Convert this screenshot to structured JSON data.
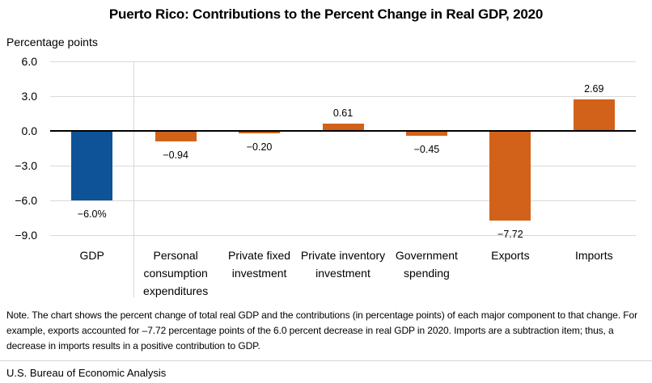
{
  "title": "Puerto Rico: Contributions to the Percent Change in Real GDP, 2020",
  "axis_caption": "Percentage points",
  "chart_data": {
    "type": "bar",
    "title": "Puerto Rico: Contributions to the Percent Change in Real GDP, 2020",
    "ylabel": "Percentage points",
    "categories": [
      "GDP",
      "Personal consumption expenditures",
      "Private fixed investment",
      "Private inventory investment",
      "Government spending",
      "Exports",
      "Imports"
    ],
    "values": [
      -6.0,
      -0.94,
      -0.2,
      0.61,
      -0.45,
      -7.72,
      2.69
    ],
    "value_labels": [
      "−6.0%",
      "−0.94",
      "−0.20",
      "0.61",
      "−0.45",
      "−7.72",
      "2.69"
    ],
    "bar_colors": [
      "#0e5398",
      "#d2621a",
      "#d2621a",
      "#d2621a",
      "#d2621a",
      "#d2621a",
      "#d2621a"
    ],
    "ylim": [
      -9,
      6
    ],
    "yticks": [
      6,
      3,
      0,
      -3,
      -6,
      -9
    ],
    "ytick_labels": [
      "6.0",
      "3.0",
      "0.0",
      "−3.0",
      "−6.0",
      "−9.0"
    ],
    "grid": "horizontal",
    "legend": "none",
    "separator_after_first_category": true
  },
  "colors": {
    "gdp_bar": "#0e5398",
    "component_bar": "#d2621a",
    "gridline": "#d9d9d9",
    "zero_axis": "#000000"
  },
  "note": "Note. The chart shows the percent change of total real GDP and the contributions (in percentage points) of each major component to that change. For example, exports accounted for –7.72 percentage points of the 6.0 percent decrease in real GDP in 2020. Imports are a subtraction item; thus, a decrease in imports results in a positive contribution to GDP.",
  "footer": {
    "source": "U.S. Bureau of Economic Analysis"
  }
}
